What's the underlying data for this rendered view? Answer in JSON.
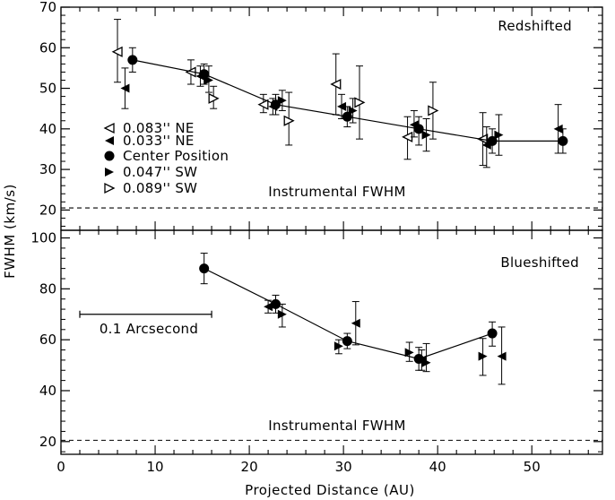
{
  "chart_data": {
    "type": "scatter",
    "xlabel": "Projected Distance (AU)",
    "ylabel": "FWHM (km/s)",
    "xlim": [
      0,
      57.5
    ],
    "x_ticks": [
      0,
      10,
      20,
      30,
      40,
      50
    ],
    "legend": [
      {
        "marker": "tri-left-open",
        "label": "0.083'' NE"
      },
      {
        "marker": "tri-left-filled",
        "label": "0.033'' NE"
      },
      {
        "marker": "circle",
        "label": "Center Position"
      },
      {
        "marker": "tri-right-filled",
        "label": "0.047'' SW"
      },
      {
        "marker": "tri-right-open",
        "label": "0.089'' SW"
      }
    ],
    "panels": [
      {
        "id": "top",
        "title": "Redshifted",
        "ylim": [
          15,
          70
        ],
        "y_ticks": [
          20,
          30,
          40,
          50,
          60,
          70
        ],
        "instrumental_fwhm": 20.5,
        "instrumental_label": "Instrumental FWHM",
        "series": [
          {
            "name": "0.083'' NE",
            "marker": "tri-left-open",
            "points": [
              {
                "x": 6.0,
                "y": 59.0,
                "err": [
                  51.5,
                  67.0
                ]
              },
              {
                "x": 13.8,
                "y": 54.0,
                "err": [
                  51.0,
                  57.0
                ]
              },
              {
                "x": 21.5,
                "y": 46.0,
                "err": [
                  44.0,
                  48.5
                ]
              },
              {
                "x": 29.2,
                "y": 51.0,
                "err": [
                  43.5,
                  58.5
                ]
              },
              {
                "x": 36.8,
                "y": 38.0,
                "err": [
                  32.5,
                  43.0
                ]
              },
              {
                "x": 44.8,
                "y": 37.5,
                "err": [
                  31.0,
                  44.0
                ]
              }
            ]
          },
          {
            "name": "0.033'' NE",
            "marker": "tri-left-filled",
            "points": [
              {
                "x": 6.8,
                "y": 50.0,
                "err": [
                  45.0,
                  55.0
                ]
              },
              {
                "x": 14.8,
                "y": 53.0,
                "err": [
                  50.5,
                  55.5
                ]
              },
              {
                "x": 22.5,
                "y": 45.5,
                "err": [
                  43.5,
                  47.5
                ]
              },
              {
                "x": 29.8,
                "y": 45.5,
                "err": [
                  42.5,
                  48.5
                ]
              },
              {
                "x": 37.5,
                "y": 41.0,
                "err": [
                  38.0,
                  44.5
                ]
              },
              {
                "x": 45.2,
                "y": 36.0,
                "err": [
                  30.5,
                  40.5
                ]
              },
              {
                "x": 52.8,
                "y": 40.0,
                "err": [
                  34.0,
                  46.0
                ]
              }
            ]
          },
          {
            "name": "Center Position",
            "marker": "circle",
            "connected": true,
            "points": [
              {
                "x": 7.6,
                "y": 57.0,
                "err": [
                  54.0,
                  60.0
                ]
              },
              {
                "x": 15.2,
                "y": 53.5,
                "err": [
                  51.0,
                  56.0
                ]
              },
              {
                "x": 22.8,
                "y": 46.0,
                "err": [
                  43.5,
                  48.5
                ]
              },
              {
                "x": 30.4,
                "y": 43.0,
                "err": [
                  40.5,
                  45.5
                ]
              },
              {
                "x": 38.0,
                "y": 40.0,
                "err": [
                  36.0,
                  43.0
                ]
              },
              {
                "x": 45.8,
                "y": 37.0,
                "err": [
                  34.0,
                  40.0
                ]
              },
              {
                "x": 53.3,
                "y": 37.0,
                "err": [
                  34.0,
                  40.0
                ]
              }
            ]
          },
          {
            "name": "0.047'' SW",
            "marker": "tri-right-filled",
            "points": [
              {
                "x": 15.7,
                "y": 52.0,
                "err": [
                  49.0,
                  55.5
                ]
              },
              {
                "x": 23.5,
                "y": 47.0,
                "err": [
                  44.5,
                  49.5
                ]
              },
              {
                "x": 31.0,
                "y": 44.5,
                "err": [
                  41.5,
                  47.5
                ]
              },
              {
                "x": 38.8,
                "y": 38.5,
                "err": [
                  34.5,
                  42.5
                ]
              },
              {
                "x": 46.5,
                "y": 38.5,
                "err": [
                  33.5,
                  43.5
                ]
              }
            ]
          },
          {
            "name": "0.089'' SW",
            "marker": "tri-right-open",
            "points": [
              {
                "x": 16.2,
                "y": 47.5,
                "err": [
                  45.0,
                  50.5
                ]
              },
              {
                "x": 24.2,
                "y": 42.0,
                "err": [
                  36.0,
                  49.0
                ]
              },
              {
                "x": 31.7,
                "y": 46.5,
                "err": [
                  37.5,
                  55.5
                ]
              },
              {
                "x": 39.5,
                "y": 44.5,
                "err": [
                  37.5,
                  51.5
                ]
              }
            ]
          }
        ]
      },
      {
        "id": "bottom",
        "title": "Blueshifted",
        "ylim": [
          15,
          103
        ],
        "y_ticks": [
          20,
          40,
          60,
          80,
          100
        ],
        "instrumental_fwhm": 20.5,
        "instrumental_label": "Instrumental FWHM",
        "series": [
          {
            "name": "0.033'' NE",
            "marker": "tri-left-filled",
            "points": [
              {
                "x": 22.0,
                "y": 73.0,
                "err": [
                  70.5,
                  75.5
                ]
              },
              {
                "x": 31.3,
                "y": 66.5,
                "err": [
                  58.0,
                  75.0
                ]
              },
              {
                "x": 38.3,
                "y": 52.0,
                "err": [
                  48.0,
                  56.0
                ]
              },
              {
                "x": 46.8,
                "y": 53.5,
                "err": [
                  42.5,
                  65.0
                ]
              }
            ]
          },
          {
            "name": "Center Position",
            "marker": "circle",
            "connected": true,
            "points": [
              {
                "x": 15.2,
                "y": 88.0,
                "err": [
                  82.0,
                  94.0
                ]
              },
              {
                "x": 22.8,
                "y": 74.0,
                "err": [
                  70.5,
                  77.5
                ]
              },
              {
                "x": 30.4,
                "y": 59.5,
                "err": [
                  56.5,
                  62.5
                ]
              },
              {
                "x": 38.0,
                "y": 52.5,
                "err": [
                  48.0,
                  57.0
                ]
              },
              {
                "x": 45.8,
                "y": 62.5,
                "err": [
                  57.5,
                  67.0
                ]
              }
            ]
          },
          {
            "name": "0.047'' SW",
            "marker": "tri-right-filled",
            "points": [
              {
                "x": 23.5,
                "y": 70.0,
                "err": [
                  65.0,
                  74.0
                ]
              },
              {
                "x": 29.5,
                "y": 57.5,
                "err": [
                  54.5,
                  60.0
                ]
              },
              {
                "x": 37.0,
                "y": 55.0,
                "err": [
                  51.5,
                  59.0
                ]
              },
              {
                "x": 38.8,
                "y": 51.0,
                "err": [
                  47.5,
                  58.5
                ]
              },
              {
                "x": 44.8,
                "y": 53.5,
                "err": [
                  46.0,
                  60.5
                ]
              }
            ]
          }
        ]
      }
    ],
    "scale_bar": {
      "label": "0.1 Arcsecond",
      "x_start": 2.0,
      "x_end": 16.0,
      "y": 70
    }
  }
}
